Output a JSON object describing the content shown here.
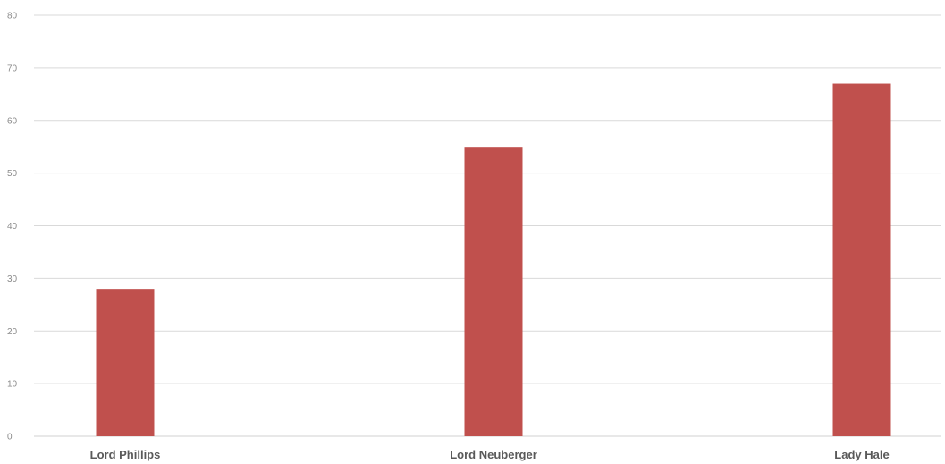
{
  "chart_data": {
    "type": "bar",
    "title": "",
    "xlabel": "",
    "ylabel": "",
    "categories": [
      "Lord Phillips",
      "Lord Neuberger",
      "Lady Hale"
    ],
    "values": [
      28,
      55,
      67
    ],
    "ylim": [
      0,
      80
    ],
    "yticks": [
      0,
      10,
      20,
      30,
      40,
      50,
      60,
      70,
      80
    ],
    "grid": true,
    "legend": "none",
    "colors": {
      "bar": "#c0504d",
      "grid": "#d9d9d9"
    }
  }
}
